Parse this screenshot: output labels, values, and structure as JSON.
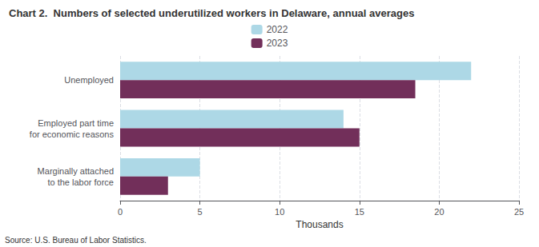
{
  "chart_data": {
    "type": "bar",
    "orientation": "horizontal",
    "title": "Chart 2.  Numbers of selected underutilized workers in Delaware, annual averages",
    "categories": [
      "Unemployed",
      "Employed part time\nfor economic reasons",
      "Marginally attached\nto the labor force"
    ],
    "series": [
      {
        "name": "2022",
        "color": "#add8e6",
        "values": [
          22,
          14,
          5
        ]
      },
      {
        "name": "2023",
        "color": "#722f5a",
        "values": [
          18.5,
          15,
          3
        ]
      }
    ],
    "xlabel": "Thousands",
    "xlim": [
      0,
      25
    ],
    "xticks": [
      0,
      5,
      10,
      15,
      20,
      25
    ],
    "grid": true,
    "legend": "top",
    "annotations": [
      "Source: U.S. Bureau of Labor Statistics."
    ]
  }
}
